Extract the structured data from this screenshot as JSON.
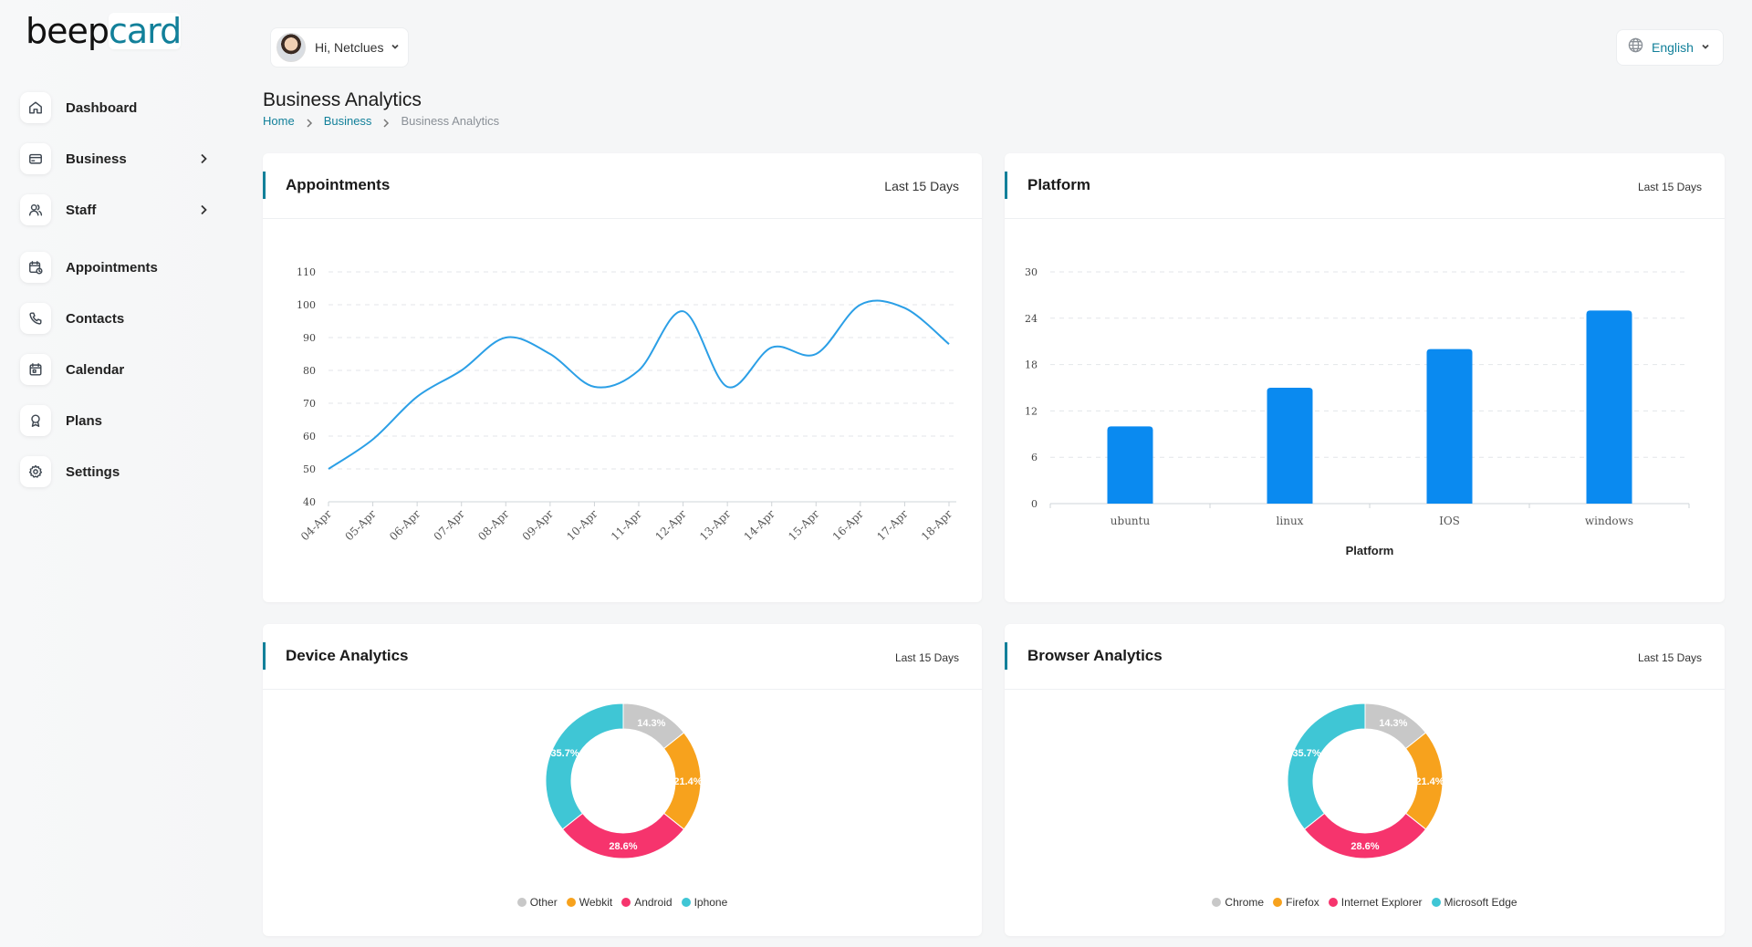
{
  "brand": {
    "logo_part1": "beep",
    "logo_part2": "card"
  },
  "sidebar": {
    "items": [
      {
        "label": "Dashboard",
        "icon": "home-icon",
        "has_submenu": false
      },
      {
        "label": "Business",
        "icon": "card-icon",
        "has_submenu": true
      },
      {
        "label": "Staff",
        "icon": "users-icon",
        "has_submenu": true
      },
      {
        "label": "Appointments",
        "icon": "calendar-clock-icon",
        "has_submenu": false
      },
      {
        "label": "Contacts",
        "icon": "phone-icon",
        "has_submenu": false
      },
      {
        "label": "Calendar",
        "icon": "calendar-icon",
        "has_submenu": false
      },
      {
        "label": "Plans",
        "icon": "award-icon",
        "has_submenu": false
      },
      {
        "label": "Settings",
        "icon": "gear-icon",
        "has_submenu": false
      }
    ]
  },
  "header": {
    "greeting": "Hi, Netclues",
    "language": "English"
  },
  "page": {
    "title": "Business Analytics",
    "breadcrumb": [
      "Home",
      "Business",
      "Business Analytics"
    ]
  },
  "cards": {
    "appointments": {
      "title": "Appointments",
      "range": "Last 15 Days"
    },
    "platform": {
      "title": "Platform",
      "range": "Last 15 Days"
    },
    "device": {
      "title": "Device Analytics",
      "range": "Last 15 Days"
    },
    "browser": {
      "title": "Browser Analytics",
      "range": "Last 15 Days"
    }
  },
  "colors": {
    "accent": "#12809a",
    "line": "#2b9fe6",
    "bar": "#0a8af0",
    "other": "#c8c8c8",
    "orange": "#f7a21d",
    "pink": "#f6346d",
    "cyan": "#3fc6d5"
  },
  "chart_data": [
    {
      "type": "line",
      "x": [
        "04-Apr",
        "05-Apr",
        "06-Apr",
        "07-Apr",
        "08-Apr",
        "09-Apr",
        "10-Apr",
        "11-Apr",
        "12-Apr",
        "13-Apr",
        "14-Apr",
        "15-Apr",
        "16-Apr",
        "17-Apr",
        "18-Apr"
      ],
      "series": [
        {
          "values": [
            50,
            59,
            72,
            80,
            90,
            85,
            75,
            80,
            98,
            75,
            87,
            85,
            100,
            99,
            88
          ]
        }
      ],
      "yticks": [
        40,
        50,
        60,
        70,
        80,
        90,
        100,
        110
      ],
      "ylim": [
        40,
        110
      ],
      "grid": true
    },
    {
      "type": "bar",
      "categories": [
        "ubuntu",
        "linux",
        "IOS",
        "windows"
      ],
      "values": [
        10,
        15,
        20,
        25
      ],
      "yticks": [
        0,
        6,
        12,
        18,
        24,
        30
      ],
      "ylim": [
        0,
        30
      ],
      "xlabel": "Platform",
      "grid": true
    },
    {
      "type": "pie",
      "labels": [
        "Other",
        "Webkit",
        "Android",
        "Iphone"
      ],
      "values": [
        14.3,
        21.4,
        28.6,
        35.7
      ],
      "value_labels": [
        "14.3%",
        "21.4%",
        "28.6%",
        "35.7%"
      ],
      "legend": "bottom"
    },
    {
      "type": "pie",
      "labels": [
        "Chrome",
        "Firefox",
        "Internet Explorer",
        "Microsoft Edge"
      ],
      "values": [
        14.3,
        21.4,
        28.6,
        35.7
      ],
      "value_labels": [
        "14.3%",
        "21.4%",
        "28.6%",
        "35.7%"
      ],
      "legend": "bottom"
    }
  ]
}
